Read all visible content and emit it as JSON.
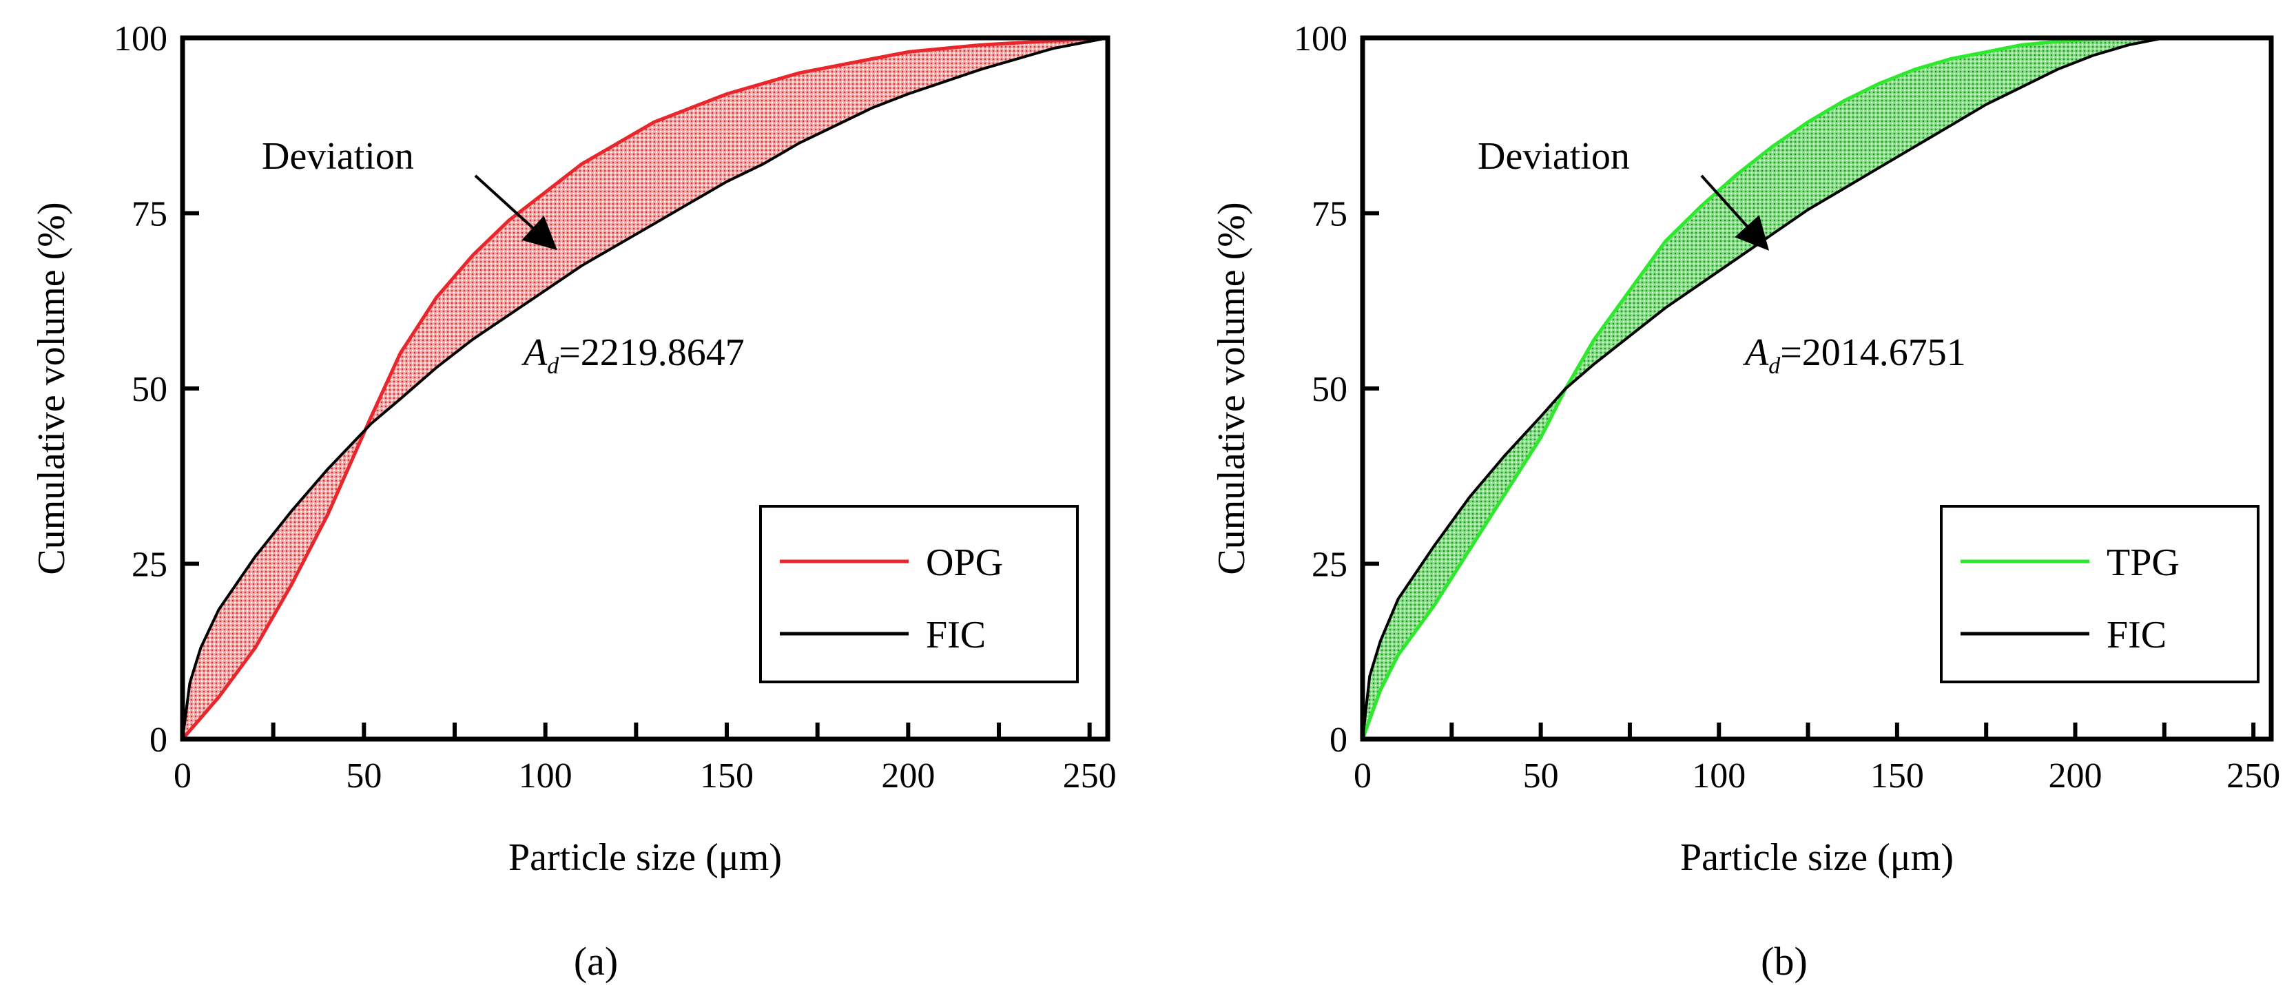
{
  "colors": {
    "opg": "#e8262b",
    "tpg": "#2ee82e",
    "fic": "#000000",
    "opg_fill": "#e07a7a",
    "tpg_fill": "#62d662"
  },
  "chart_data": [
    {
      "type": "line",
      "panel_label": "(a)",
      "xlabel": "Particle size (μm)",
      "ylabel": "Cumulative volume (%)",
      "xlim": [
        0,
        255
      ],
      "ylim": [
        0,
        100
      ],
      "xticks": [
        0,
        50,
        100,
        150,
        200,
        250
      ],
      "yticks": [
        0,
        25,
        50,
        75,
        100
      ],
      "legend_position": "bottom-right",
      "annotation": "Deviation",
      "area_label": {
        "symbol": "A",
        "subscript": "d",
        "value": "=2219.8647"
      },
      "series": [
        {
          "name": "OPG",
          "color_key": "opg",
          "x": [
            0,
            10,
            20,
            30,
            40,
            52,
            60,
            70,
            80,
            90,
            100,
            110,
            120,
            130,
            140,
            150,
            160,
            170,
            180,
            190,
            200,
            220,
            240,
            255
          ],
          "y": [
            0,
            6,
            13,
            22,
            32,
            46,
            55,
            63,
            69,
            74,
            78,
            82,
            85,
            88,
            90,
            92,
            93.5,
            95,
            96,
            97,
            98,
            99,
            99.6,
            100
          ]
        },
        {
          "name": "FIC",
          "color_key": "fic",
          "x": [
            0,
            2,
            5,
            10,
            20,
            30,
            40,
            52,
            60,
            70,
            80,
            90,
            100,
            110,
            120,
            130,
            140,
            150,
            160,
            170,
            180,
            190,
            200,
            220,
            240,
            255
          ],
          "y": [
            0,
            8,
            13,
            18.5,
            26,
            32.5,
            38.5,
            45,
            48.5,
            53,
            57,
            60.5,
            64,
            67.5,
            70.5,
            73.5,
            76.5,
            79.5,
            82,
            85,
            87.5,
            90,
            92,
            95.5,
            98.5,
            100
          ]
        }
      ]
    },
    {
      "type": "line",
      "panel_label": "(b)",
      "xlabel": "Particle size (μm)",
      "ylabel": "Cumulative volume (%)",
      "xlim": [
        0,
        255
      ],
      "ylim": [
        0,
        100
      ],
      "xticks": [
        0,
        50,
        100,
        150,
        200,
        250
      ],
      "yticks": [
        0,
        25,
        50,
        75,
        100
      ],
      "legend_position": "bottom-right",
      "annotation": "Deviation",
      "area_label": {
        "symbol": "A",
        "subscript": "d",
        "value": "=2014.6751"
      },
      "series": [
        {
          "name": "TPG",
          "color_key": "tpg",
          "x": [
            0,
            5,
            10,
            20,
            30,
            40,
            50,
            57,
            65,
            75,
            85,
            95,
            105,
            115,
            125,
            135,
            145,
            155,
            165,
            175,
            185,
            195,
            205,
            215,
            225,
            233,
            255
          ],
          "y": [
            0,
            7,
            12,
            19,
            27,
            35,
            43,
            50,
            57,
            64,
            71,
            76,
            80.5,
            84.5,
            88,
            91,
            93.5,
            95.5,
            97,
            98,
            99,
            99.5,
            99.8,
            100,
            100,
            100,
            100
          ]
        },
        {
          "name": "FIC",
          "color_key": "fic",
          "x": [
            0,
            2,
            5,
            10,
            20,
            30,
            40,
            50,
            57,
            65,
            75,
            85,
            95,
            105,
            115,
            125,
            135,
            145,
            155,
            165,
            175,
            185,
            195,
            205,
            215,
            225,
            233,
            255
          ],
          "y": [
            0,
            9,
            14,
            20,
            27.5,
            34.5,
            40.5,
            46,
            50,
            53.5,
            57.5,
            61.5,
            65,
            68.5,
            72,
            75.5,
            78.5,
            81.5,
            84.5,
            87.5,
            90.5,
            93,
            95.5,
            97.5,
            99,
            100,
            100,
            100
          ]
        }
      ]
    }
  ]
}
